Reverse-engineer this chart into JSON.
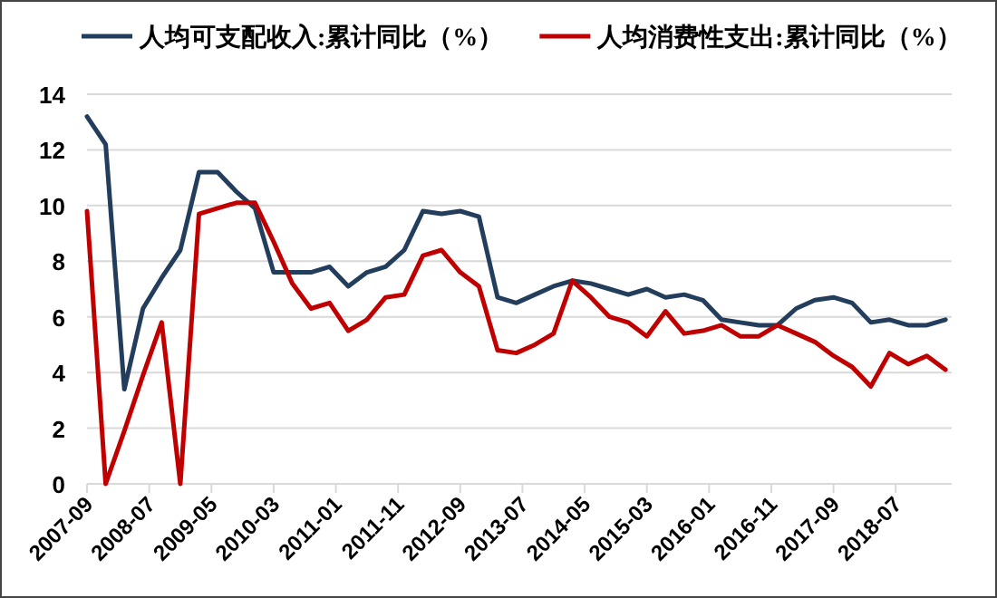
{
  "chart_data": {
    "type": "line",
    "x": [
      "2007-09",
      "2007-12",
      "2008-03",
      "2008-06",
      "2008-09",
      "2008-12",
      "2009-03",
      "2009-06",
      "2009-09",
      "2009-12",
      "2010-03",
      "2010-06",
      "2010-09",
      "2010-12",
      "2011-03",
      "2011-06",
      "2011-09",
      "2011-12",
      "2012-03",
      "2012-06",
      "2012-09",
      "2012-12",
      "2013-03",
      "2013-06",
      "2013-09",
      "2013-12",
      "2014-03",
      "2014-06",
      "2014-09",
      "2014-12",
      "2015-03",
      "2015-06",
      "2015-09",
      "2015-12",
      "2016-03",
      "2016-06",
      "2016-09",
      "2016-12",
      "2017-03",
      "2017-06",
      "2017-09",
      "2017-12",
      "2018-03",
      "2018-06",
      "2018-09",
      "2018-12",
      "2019-03"
    ],
    "series": [
      {
        "name": "人均可支配收入:累计同比（%）",
        "color": "#233d5c",
        "values": [
          13.2,
          12.2,
          3.4,
          6.3,
          7.4,
          8.4,
          11.2,
          11.2,
          10.5,
          9.9,
          7.6,
          7.6,
          7.6,
          7.8,
          7.1,
          7.6,
          7.8,
          8.4,
          9.8,
          9.7,
          9.8,
          9.6,
          6.7,
          6.5,
          6.8,
          7.1,
          7.3,
          7.2,
          7.0,
          6.8,
          7.0,
          6.7,
          6.8,
          6.6,
          5.9,
          5.8,
          5.7,
          5.7,
          6.3,
          6.6,
          6.7,
          6.5,
          5.8,
          5.9,
          5.7,
          5.7,
          5.9
        ]
      },
      {
        "name": "人均消费性支出:累计同比（%）",
        "color": "#c00000",
        "values": [
          9.8,
          0,
          1.9,
          3.9,
          5.8,
          0,
          9.7,
          9.9,
          10.1,
          10.1,
          8.7,
          7.2,
          6.3,
          6.5,
          5.5,
          5.9,
          6.7,
          6.8,
          8.2,
          8.4,
          7.6,
          7.1,
          4.8,
          4.7,
          5.0,
          5.4,
          7.3,
          6.7,
          6.0,
          5.8,
          5.3,
          6.2,
          5.4,
          5.5,
          5.7,
          5.3,
          5.3,
          5.7,
          5.4,
          5.1,
          4.6,
          4.2,
          3.5,
          4.7,
          4.3,
          4.6,
          4.1
        ]
      }
    ],
    "xlim": [
      "2007-09",
      "2019-04"
    ],
    "xticks": [
      {
        "value": "2007-09",
        "label": "2007-09"
      },
      {
        "value": "2008-07",
        "label": "2008-07"
      },
      {
        "value": "2009-05",
        "label": "2009-05"
      },
      {
        "value": "2010-03",
        "label": "2010-03"
      },
      {
        "value": "2011-01",
        "label": "2011-01"
      },
      {
        "value": "2011-11",
        "label": "2011-11"
      },
      {
        "value": "2012-09",
        "label": "2012-09"
      },
      {
        "value": "2013-07",
        "label": "2013-07"
      },
      {
        "value": "2014-05",
        "label": "2014-05"
      },
      {
        "value": "2015-03",
        "label": "2015-03"
      },
      {
        "value": "2016-01",
        "label": "2016-01"
      },
      {
        "value": "2016-11",
        "label": "2016-11"
      },
      {
        "value": "2017-09",
        "label": "2017-09"
      },
      {
        "value": "2018-07",
        "label": "2018-07"
      }
    ],
    "ylim": [
      0,
      14
    ],
    "yticks": [
      0,
      2,
      4,
      6,
      8,
      10,
      12,
      14
    ],
    "grid": "y",
    "legend": "top",
    "marker": "none",
    "line_style": "solid"
  }
}
